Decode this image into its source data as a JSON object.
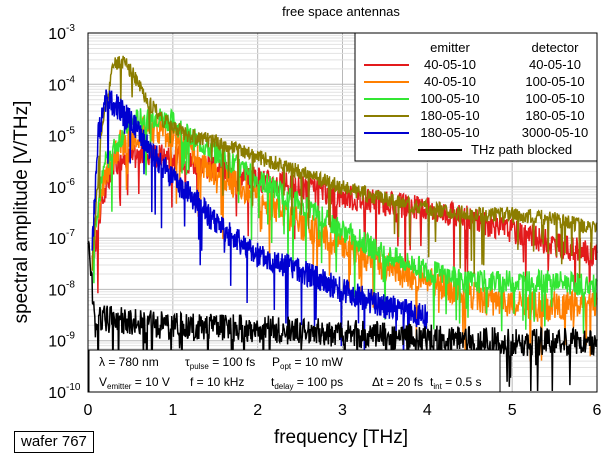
{
  "chart_data": {
    "type": "line",
    "title": "free space antennas",
    "xlabel": "frequency [THz]",
    "ylabel": "spectral amplitude [V/THz]",
    "xlim": [
      0,
      6
    ],
    "ylim": [
      1e-10,
      0.001
    ],
    "yscale": "log",
    "grid": true,
    "x_ticks": [
      0,
      1,
      2,
      3,
      4,
      5,
      6
    ],
    "y_ticks": [
      {
        "value": 1e-10,
        "base": "10",
        "exp": "-10"
      },
      {
        "value": 1e-09,
        "base": "10",
        "exp": "-9"
      },
      {
        "value": 1e-08,
        "base": "10",
        "exp": "-8"
      },
      {
        "value": 1e-07,
        "base": "10",
        "exp": "-7"
      },
      {
        "value": 1e-06,
        "base": "10",
        "exp": "-6"
      },
      {
        "value": 1e-05,
        "base": "10",
        "exp": "-5"
      },
      {
        "value": 0.0001,
        "base": "10",
        "exp": "-4"
      },
      {
        "value": 0.001,
        "base": "10",
        "exp": "-3"
      }
    ],
    "legend": {
      "placement": "top-right",
      "header_emitter": "emitter",
      "header_detector": "detector",
      "entries": [
        {
          "emitter": "40-05-10",
          "detector": "40-05-10",
          "color": "#e31a1c"
        },
        {
          "emitter": "40-05-10",
          "detector": "100-05-10",
          "color": "#ff7f00"
        },
        {
          "emitter": "100-05-10",
          "detector": "100-05-10",
          "color": "#33e633"
        },
        {
          "emitter": "180-05-10",
          "detector": "180-05-10",
          "color": "#8b7d00"
        },
        {
          "emitter": "180-05-10",
          "detector": "3000-05-10",
          "color": "#0000d0"
        }
      ],
      "blocked": {
        "label": "THz path blocked",
        "color": "#000000"
      }
    },
    "series": [
      {
        "color": "#e31a1c",
        "noise": 0.5,
        "points": [
          [
            0.05,
            3e-08
          ],
          [
            0.15,
            4e-07
          ],
          [
            0.3,
            3e-06
          ],
          [
            0.5,
            4e-06
          ],
          [
            0.7,
            5e-06
          ],
          [
            1.0,
            4e-06
          ],
          [
            1.3,
            3e-06
          ],
          [
            1.6,
            2e-06
          ],
          [
            2.0,
            1.5e-06
          ],
          [
            2.5,
            1e-06
          ],
          [
            3.0,
            7e-07
          ],
          [
            3.5,
            5e-07
          ],
          [
            4.0,
            4e-07
          ],
          [
            4.5,
            2.5e-07
          ],
          [
            5.0,
            1.5e-07
          ],
          [
            5.5,
            8e-08
          ],
          [
            6.0,
            5e-08
          ]
        ]
      },
      {
        "color": "#ff7f00",
        "noise": 0.6,
        "points": [
          [
            0.05,
            5e-08
          ],
          [
            0.2,
            2e-06
          ],
          [
            0.4,
            8e-06
          ],
          [
            0.7,
            1.5e-05
          ],
          [
            1.0,
            1e-05
          ],
          [
            1.2,
            5e-06
          ],
          [
            1.5,
            2e-06
          ],
          [
            2.0,
            7e-07
          ],
          [
            2.5,
            2e-07
          ],
          [
            3.0,
            8e-08
          ],
          [
            3.5,
            3e-08
          ],
          [
            4.0,
            1.5e-08
          ],
          [
            4.5,
            8e-09
          ],
          [
            5.0,
            5e-09
          ],
          [
            5.5,
            5e-09
          ],
          [
            6.0,
            5e-09
          ]
        ]
      },
      {
        "color": "#33e633",
        "noise": 0.45,
        "points": [
          [
            0.05,
            1e-07
          ],
          [
            0.2,
            3e-06
          ],
          [
            0.5,
            2e-05
          ],
          [
            0.8,
            2.5e-05
          ],
          [
            1.0,
            2e-05
          ],
          [
            1.2,
            1e-05
          ],
          [
            1.5,
            5e-06
          ],
          [
            2.0,
            1.5e-06
          ],
          [
            2.5,
            5e-07
          ],
          [
            3.0,
            1.5e-07
          ],
          [
            3.5,
            5e-08
          ],
          [
            4.0,
            2.5e-08
          ],
          [
            4.5,
            1.5e-08
          ],
          [
            5.0,
            1.5e-08
          ],
          [
            5.5,
            1.5e-08
          ],
          [
            6.0,
            1.2e-08
          ]
        ]
      },
      {
        "color": "#8b7d00",
        "noise": 0.3,
        "points": [
          [
            0.05,
            3e-08
          ],
          [
            0.15,
            1e-05
          ],
          [
            0.3,
            0.00025
          ],
          [
            0.4,
            0.0003
          ],
          [
            0.5,
            0.0002
          ],
          [
            0.7,
            5e-05
          ],
          [
            0.9,
            2e-05
          ],
          [
            1.2,
            1e-05
          ],
          [
            1.5,
            8e-06
          ],
          [
            2.0,
            4e-06
          ],
          [
            2.5,
            2e-06
          ],
          [
            3.0,
            1e-06
          ],
          [
            3.5,
            6e-07
          ],
          [
            4.0,
            4e-07
          ],
          [
            4.5,
            3e-07
          ],
          [
            5.0,
            3e-07
          ],
          [
            5.5,
            2.5e-07
          ],
          [
            6.0,
            1.5e-07
          ]
        ]
      },
      {
        "color": "#0000d0",
        "noise": 0.5,
        "points": [
          [
            0.05,
            8e-08
          ],
          [
            0.12,
            1e-05
          ],
          [
            0.2,
            5e-05
          ],
          [
            0.3,
            4.5e-05
          ],
          [
            0.5,
            2e-05
          ],
          [
            0.8,
            4e-06
          ],
          [
            1.0,
            1.5e-06
          ],
          [
            1.3,
            5e-07
          ],
          [
            1.6,
            1.5e-07
          ],
          [
            2.0,
            5e-08
          ],
          [
            2.5,
            2.5e-08
          ],
          [
            3.0,
            1e-08
          ],
          [
            3.5,
            5e-09
          ],
          [
            4.0,
            3e-09
          ]
        ]
      },
      {
        "color": "#000000",
        "noise": 0.55,
        "points": [
          [
            0.0,
            1e-07
          ],
          [
            0.05,
            1e-08
          ],
          [
            0.1,
            3e-09
          ],
          [
            0.5,
            2.5e-09
          ],
          [
            1.0,
            2e-09
          ],
          [
            2.0,
            1.8e-09
          ],
          [
            3.0,
            1.5e-09
          ],
          [
            4.0,
            1.2e-09
          ],
          [
            5.0,
            1e-09
          ],
          [
            6.0,
            1e-09
          ]
        ]
      }
    ],
    "info_box": {
      "line1": [
        {
          "t": "λ = 780 nm"
        },
        {
          "t": "τ",
          "sub": "pulse",
          "t2": " = 100 fs"
        },
        {
          "t": "P",
          "sub": "opt",
          "t2": " = 10 mW"
        }
      ],
      "line2": [
        {
          "t": "V",
          "sub": "emitter",
          "t2": " = 10 V"
        },
        {
          "t": "f = 10 kHz"
        },
        {
          "t": "t",
          "sub": "delay",
          "t2": " = 100 ps"
        },
        {
          "t": "Δt = 20 fs"
        },
        {
          "t": "t",
          "sub": "int",
          "t2": " = 0.5 s"
        }
      ]
    }
  },
  "wafer_label": "wafer 767"
}
